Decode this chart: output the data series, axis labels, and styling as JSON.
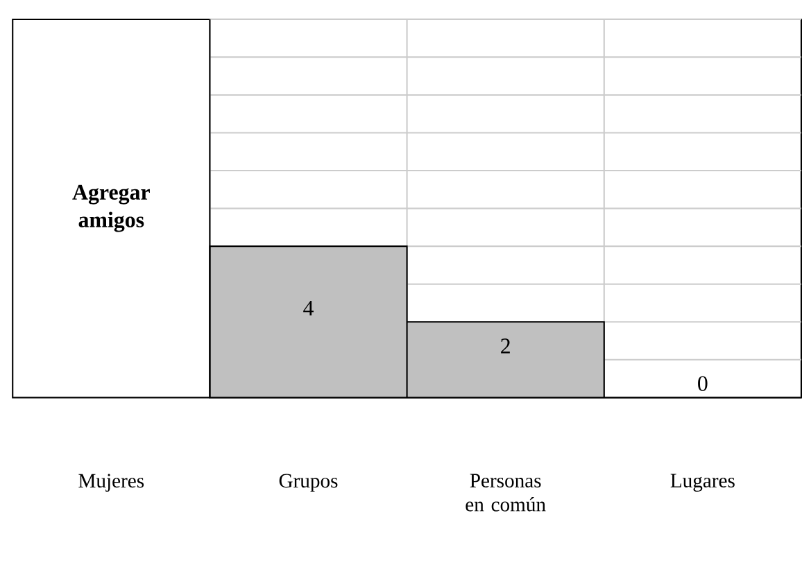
{
  "chart_data": {
    "type": "bar",
    "title": "Agregar amigos",
    "categories": [
      "Mujeres",
      "Grupos",
      "Personas en común",
      "Lugares"
    ],
    "values": [
      null,
      4,
      2,
      0
    ],
    "color": "#c0c0c0",
    "ylim": [
      0,
      10
    ],
    "yticks": [
      0,
      1,
      2,
      3,
      4,
      5,
      6,
      7,
      8,
      9,
      10
    ],
    "tick_labels": "x",
    "grid": true,
    "data_labels": true
  }
}
